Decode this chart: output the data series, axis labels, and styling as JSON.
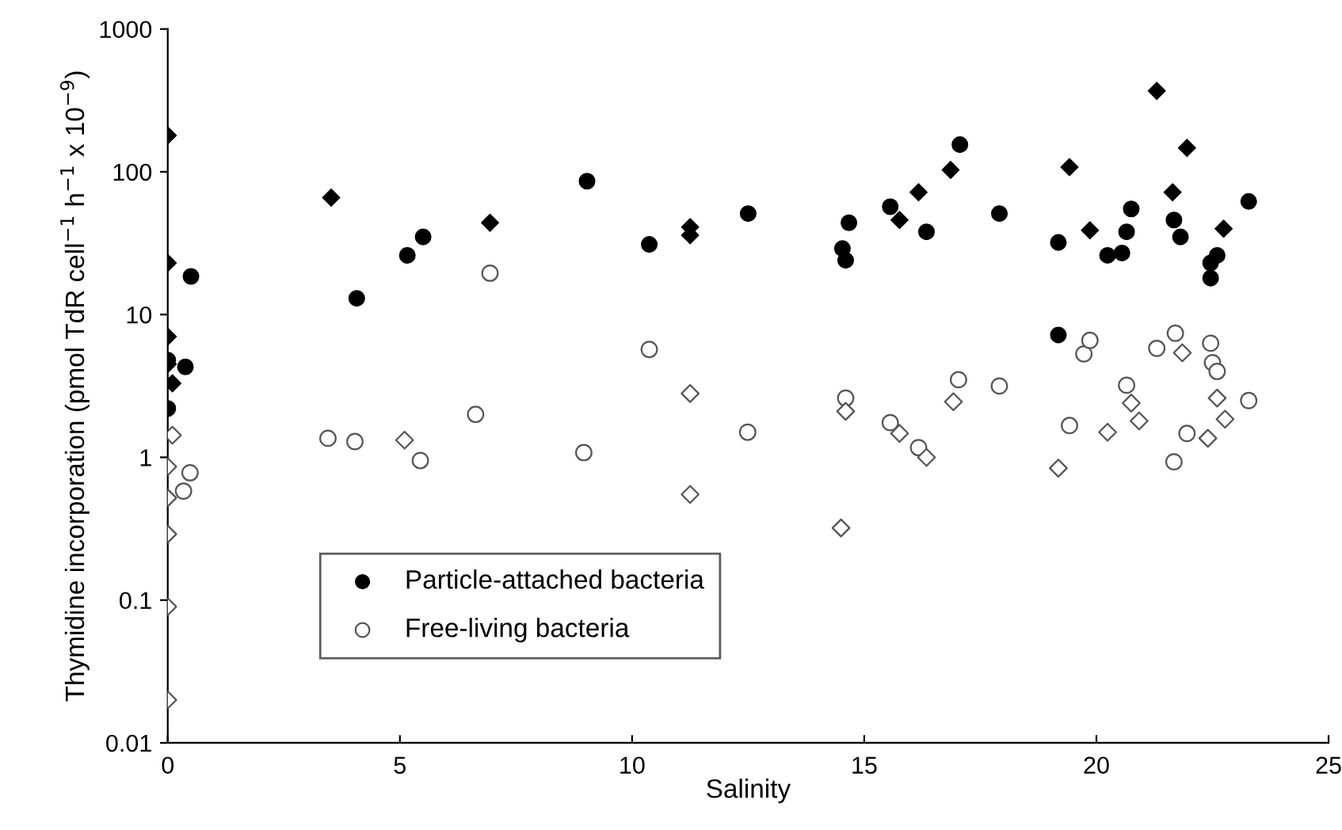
{
  "chart_data": {
    "type": "scatter",
    "xlabel": "Salinity",
    "ylabel": "Thymidine incorporation (pmol TdR cell$^{−1}$ h$^{−1}$ x 10$^{−9}$)",
    "log": "y",
    "xlim": [
      0,
      25
    ],
    "xticks": [
      0,
      5,
      10,
      15,
      20,
      25
    ],
    "ylim": [
      0.01,
      1000
    ],
    "yticks": [
      {
        "value": 1000,
        "label": "1000"
      },
      {
        "value": 100,
        "label": "100"
      },
      {
        "value": 10,
        "label": "10"
      },
      {
        "value": 1,
        "label": "1"
      },
      {
        "value": 0.1,
        "label": "0.1"
      },
      {
        "value": 0.01,
        "label": "0.01"
      }
    ],
    "grid": false,
    "legend": "bottom left",
    "series": [
      {
        "name": "Particle-attached bacteria",
        "color": "#000000",
        "marker": "circle",
        "x": [
          0,
          0,
          0.38,
          0.5,
          4.07,
          5.16,
          5.5,
          9.03,
          10.37,
          12.5,
          14.53,
          14.6,
          14.67,
          15.56,
          16.34,
          17.06,
          17.91,
          19.18,
          19.18,
          20.24,
          20.55,
          20.65,
          20.75,
          21.67,
          21.81,
          22.46,
          22.46,
          22.6,
          23.28
        ],
        "values": [
          4.8,
          2.2,
          4.3,
          18.5,
          13,
          26,
          35,
          86,
          31,
          51,
          29,
          24,
          44,
          57,
          38,
          155,
          51,
          32,
          7.2,
          26,
          27,
          38,
          55,
          46,
          35,
          23,
          18,
          26,
          62
        ]
      },
      {
        "color": "#000000",
        "marker": "diamond",
        "x": [
          0,
          0,
          0,
          0,
          0.1,
          3.52,
          6.94,
          11.25,
          11.25,
          15.76,
          16.17,
          16.86,
          19.42,
          19.86,
          21.3,
          21.64,
          21.95,
          22.74
        ],
        "values": [
          180,
          23,
          7,
          4.5,
          3.3,
          66,
          44,
          41,
          36,
          46,
          72,
          103,
          108,
          39,
          369,
          72,
          147,
          40
        ]
      },
      {
        "name": "Free-living bacteria",
        "color": "#555555",
        "marker": "circle",
        "x": [
          0.34,
          0.48,
          3.45,
          4.03,
          5.44,
          6.63,
          6.94,
          8.96,
          10.37,
          12.49,
          14.6,
          15.56,
          16.17,
          17.03,
          17.91,
          19.42,
          19.73,
          19.86,
          20.65,
          21.3,
          21.67,
          21.7,
          21.95,
          22.46,
          22.5,
          22.6,
          23.28
        ],
        "values": [
          0.58,
          0.78,
          1.36,
          1.29,
          0.95,
          2.0,
          19.5,
          1.08,
          5.7,
          1.5,
          2.6,
          1.75,
          1.17,
          3.5,
          3.16,
          1.67,
          5.3,
          6.6,
          3.2,
          5.8,
          0.93,
          7.4,
          1.47,
          6.3,
          4.6,
          4.0,
          2.5
        ]
      },
      {
        "color": "#555555",
        "marker": "diamond",
        "x": [
          0.1,
          0,
          0,
          0,
          0,
          0,
          5.1,
          11.25,
          11.25,
          14.5,
          14.6,
          15.76,
          16.34,
          16.92,
          19.18,
          20.24,
          20.75,
          20.92,
          21.85,
          22.4,
          22.6,
          22.77
        ],
        "values": [
          1.43,
          0.86,
          0.52,
          0.29,
          0.09,
          0.02,
          1.32,
          2.8,
          0.55,
          0.32,
          2.1,
          1.47,
          1.0,
          2.45,
          0.84,
          1.5,
          2.4,
          1.8,
          5.4,
          1.36,
          2.6,
          1.85
        ]
      }
    ]
  }
}
